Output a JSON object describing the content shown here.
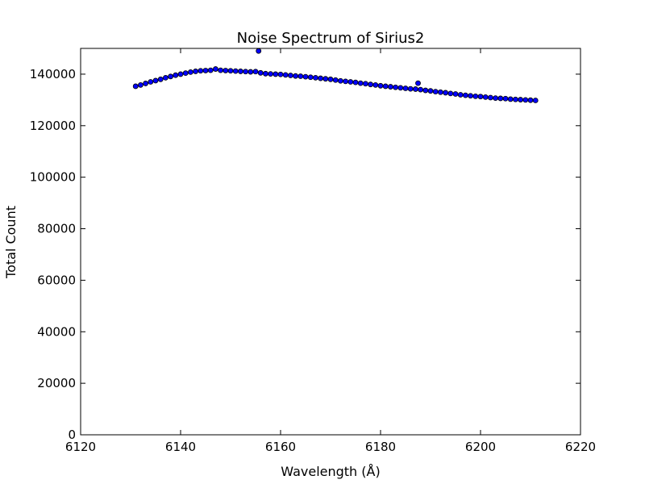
{
  "chart_data": {
    "type": "scatter",
    "title": "Noise Spectrum of Sirius2",
    "xlabel": "Wavelength (Å)",
    "ylabel": "Total Count",
    "color": "#0000ff",
    "edgecolor": "#000000",
    "xlim": [
      6120,
      6220
    ],
    "xticks": [
      6120,
      6140,
      6160,
      6180,
      6200,
      6220
    ],
    "ylim": [
      0,
      150000
    ],
    "yticks": [
      0,
      20000,
      40000,
      60000,
      80000,
      100000,
      120000,
      140000
    ],
    "x": [
      6131,
      6132,
      6133,
      6134,
      6135,
      6136,
      6137,
      6138,
      6139,
      6140,
      6141,
      6142,
      6143,
      6144,
      6145,
      6146,
      6147,
      6148,
      6149,
      6150,
      6151,
      6152,
      6153,
      6154,
      6155,
      6155.6,
      6156,
      6157,
      6158,
      6159,
      6160,
      6161,
      6162,
      6163,
      6164,
      6165,
      6166,
      6167,
      6168,
      6169,
      6170,
      6171,
      6172,
      6173,
      6174,
      6175,
      6176,
      6177,
      6178,
      6179,
      6180,
      6181,
      6182,
      6183,
      6184,
      6185,
      6186,
      6187,
      6187.5,
      6188,
      6189,
      6190,
      6191,
      6192,
      6193,
      6194,
      6195,
      6196,
      6197,
      6198,
      6199,
      6200,
      6201,
      6202,
      6203,
      6204,
      6205,
      6206,
      6207,
      6208,
      6209,
      6210,
      6211
    ],
    "values": [
      135300,
      135800,
      136400,
      137000,
      137500,
      138000,
      138600,
      139100,
      139600,
      140000,
      140400,
      140800,
      141100,
      141300,
      141400,
      141500,
      142000,
      141500,
      141400,
      141300,
      141200,
      141100,
      141000,
      140900,
      141000,
      149000,
      140500,
      140200,
      140100,
      140000,
      139900,
      139700,
      139500,
      139300,
      139200,
      139000,
      138800,
      138600,
      138400,
      138200,
      138000,
      137700,
      137400,
      137200,
      137000,
      136800,
      136500,
      136300,
      136000,
      135800,
      135500,
      135300,
      135100,
      134900,
      134700,
      134500,
      134300,
      134200,
      136500,
      134000,
      133700,
      133500,
      133200,
      133000,
      132800,
      132500,
      132300,
      132000,
      131800,
      131600,
      131400,
      131300,
      131100,
      130900,
      130700,
      130600,
      130500,
      130300,
      130200,
      130100,
      130000,
      129900,
      129800
    ]
  }
}
